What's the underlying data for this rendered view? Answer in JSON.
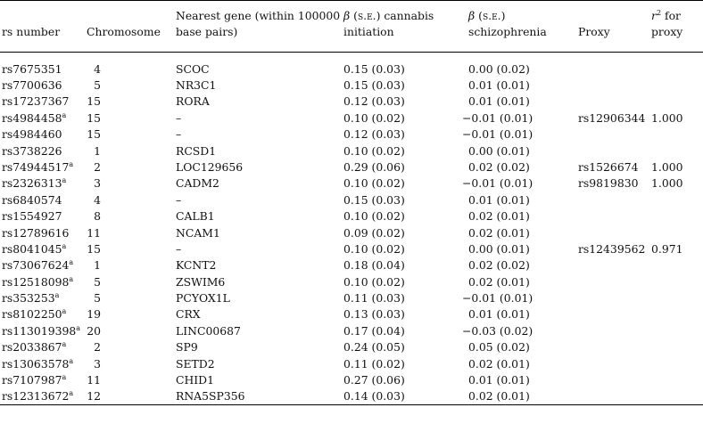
{
  "headers": {
    "rs_number": "rs number",
    "chromosome": "Chromosome",
    "nearest_gene": "Nearest gene (within 100000 base pairs)",
    "beta_cannabis_symbol": "β",
    "beta_cannabis_se": "(s.e.)",
    "beta_cannabis_text": "cannabis initiation",
    "beta_schizo_symbol": "β",
    "beta_schizo_se": "(s.e.)",
    "beta_schizo_text": "schizophrenia",
    "proxy": "Proxy",
    "r2_symbol": "r",
    "r2_exp": "2",
    "r2_text": "for proxy"
  },
  "rows": [
    {
      "rs": "rs7675351",
      "sup": "",
      "chr": "4",
      "gene": "SCOC",
      "cannabis": "0.15 (0.03)",
      "schizo": "0.00 (0.02)",
      "proxy": "",
      "r2": ""
    },
    {
      "rs": "rs7700636",
      "sup": "",
      "chr": "5",
      "gene": "NR3C1",
      "cannabis": "0.15 (0.03)",
      "schizo": "0.01 (0.01)",
      "proxy": "",
      "r2": ""
    },
    {
      "rs": "rs17237367",
      "sup": "",
      "chr": "15",
      "gene": "RORA",
      "cannabis": "0.12 (0.03)",
      "schizo": "0.01 (0.01)",
      "proxy": "",
      "r2": ""
    },
    {
      "rs": "rs4984458",
      "sup": "a",
      "chr": "15",
      "gene": "–",
      "cannabis": "0.10 (0.02)",
      "schizo": "−0.01 (0.01)",
      "proxy": "rs12906344",
      "r2": "1.000"
    },
    {
      "rs": "rs4984460",
      "sup": "",
      "chr": "15",
      "gene": "–",
      "cannabis": "0.12 (0.03)",
      "schizo": "−0.01 (0.01)",
      "proxy": "",
      "r2": ""
    },
    {
      "rs": "rs3738226",
      "sup": "",
      "chr": "1",
      "gene": "RCSD1",
      "cannabis": "0.10 (0.02)",
      "schizo": "0.00 (0.01)",
      "proxy": "",
      "r2": ""
    },
    {
      "rs": "rs74944517",
      "sup": "a",
      "chr": "2",
      "gene": "LOC129656",
      "cannabis": "0.29 (0.06)",
      "schizo": "0.02 (0.02)",
      "proxy": "rs1526674",
      "r2": "1.000"
    },
    {
      "rs": "rs2326313",
      "sup": "a",
      "chr": "3",
      "gene": "CADM2",
      "cannabis": "0.10 (0.02)",
      "schizo": "−0.01 (0.01)",
      "proxy": "rs9819830",
      "r2": "1.000"
    },
    {
      "rs": "rs6840574",
      "sup": "",
      "chr": "4",
      "gene": "–",
      "cannabis": "0.15 (0.03)",
      "schizo": "0.01 (0.01)",
      "proxy": "",
      "r2": ""
    },
    {
      "rs": "rs1554927",
      "sup": "",
      "chr": "8",
      "gene": "CALB1",
      "cannabis": "0.10 (0.02)",
      "schizo": "0.02 (0.01)",
      "proxy": "",
      "r2": ""
    },
    {
      "rs": "rs12789616",
      "sup": "",
      "chr": "11",
      "gene": "NCAM1",
      "cannabis": "0.09 (0.02)",
      "schizo": "0.02 (0.01)",
      "proxy": "",
      "r2": ""
    },
    {
      "rs": "rs8041045",
      "sup": "a",
      "chr": "15",
      "gene": "–",
      "cannabis": "0.10 (0.02)",
      "schizo": "0.00 (0.01)",
      "proxy": "rs12439562",
      "r2": "0.971"
    },
    {
      "rs": "rs73067624",
      "sup": "a",
      "chr": "1",
      "gene": "KCNT2",
      "cannabis": "0.18 (0.04)",
      "schizo": "0.02 (0.02)",
      "proxy": "",
      "r2": ""
    },
    {
      "rs": "rs12518098",
      "sup": "a",
      "chr": "5",
      "gene": "ZSWIM6",
      "cannabis": "0.10 (0.02)",
      "schizo": "0.02 (0.01)",
      "proxy": "",
      "r2": ""
    },
    {
      "rs": "rs353253",
      "sup": "a",
      "chr": "5",
      "gene": "PCYOX1L",
      "cannabis": "0.11 (0.03)",
      "schizo": "−0.01 (0.01)",
      "proxy": "",
      "r2": ""
    },
    {
      "rs": "rs8102250",
      "sup": "a",
      "chr": "19",
      "gene": "CRX",
      "cannabis": "0.13 (0.03)",
      "schizo": "0.01 (0.01)",
      "proxy": "",
      "r2": ""
    },
    {
      "rs": "rs113019398",
      "sup": "a",
      "chr": "20",
      "gene": "LINC00687",
      "cannabis": "0.17 (0.04)",
      "schizo": "−0.03 (0.02)",
      "proxy": "",
      "r2": ""
    },
    {
      "rs": "rs2033867",
      "sup": "a",
      "chr": "2",
      "gene": "SP9",
      "cannabis": "0.24 (0.05)",
      "schizo": "0.05 (0.02)",
      "proxy": "",
      "r2": ""
    },
    {
      "rs": "rs13063578",
      "sup": "a",
      "chr": "3",
      "gene": "SETD2",
      "cannabis": "0.11 (0.02)",
      "schizo": "0.02 (0.01)",
      "proxy": "",
      "r2": ""
    },
    {
      "rs": "rs7107987",
      "sup": "a",
      "chr": "11",
      "gene": "CHID1",
      "cannabis": "0.27 (0.06)",
      "schizo": "0.01 (0.01)",
      "proxy": "",
      "r2": ""
    },
    {
      "rs": "rs12313672",
      "sup": "a",
      "chr": "12",
      "gene": "RNA5SP356",
      "cannabis": "0.14 (0.03)",
      "schizo": "0.02 (0.01)",
      "proxy": "",
      "r2": ""
    }
  ]
}
